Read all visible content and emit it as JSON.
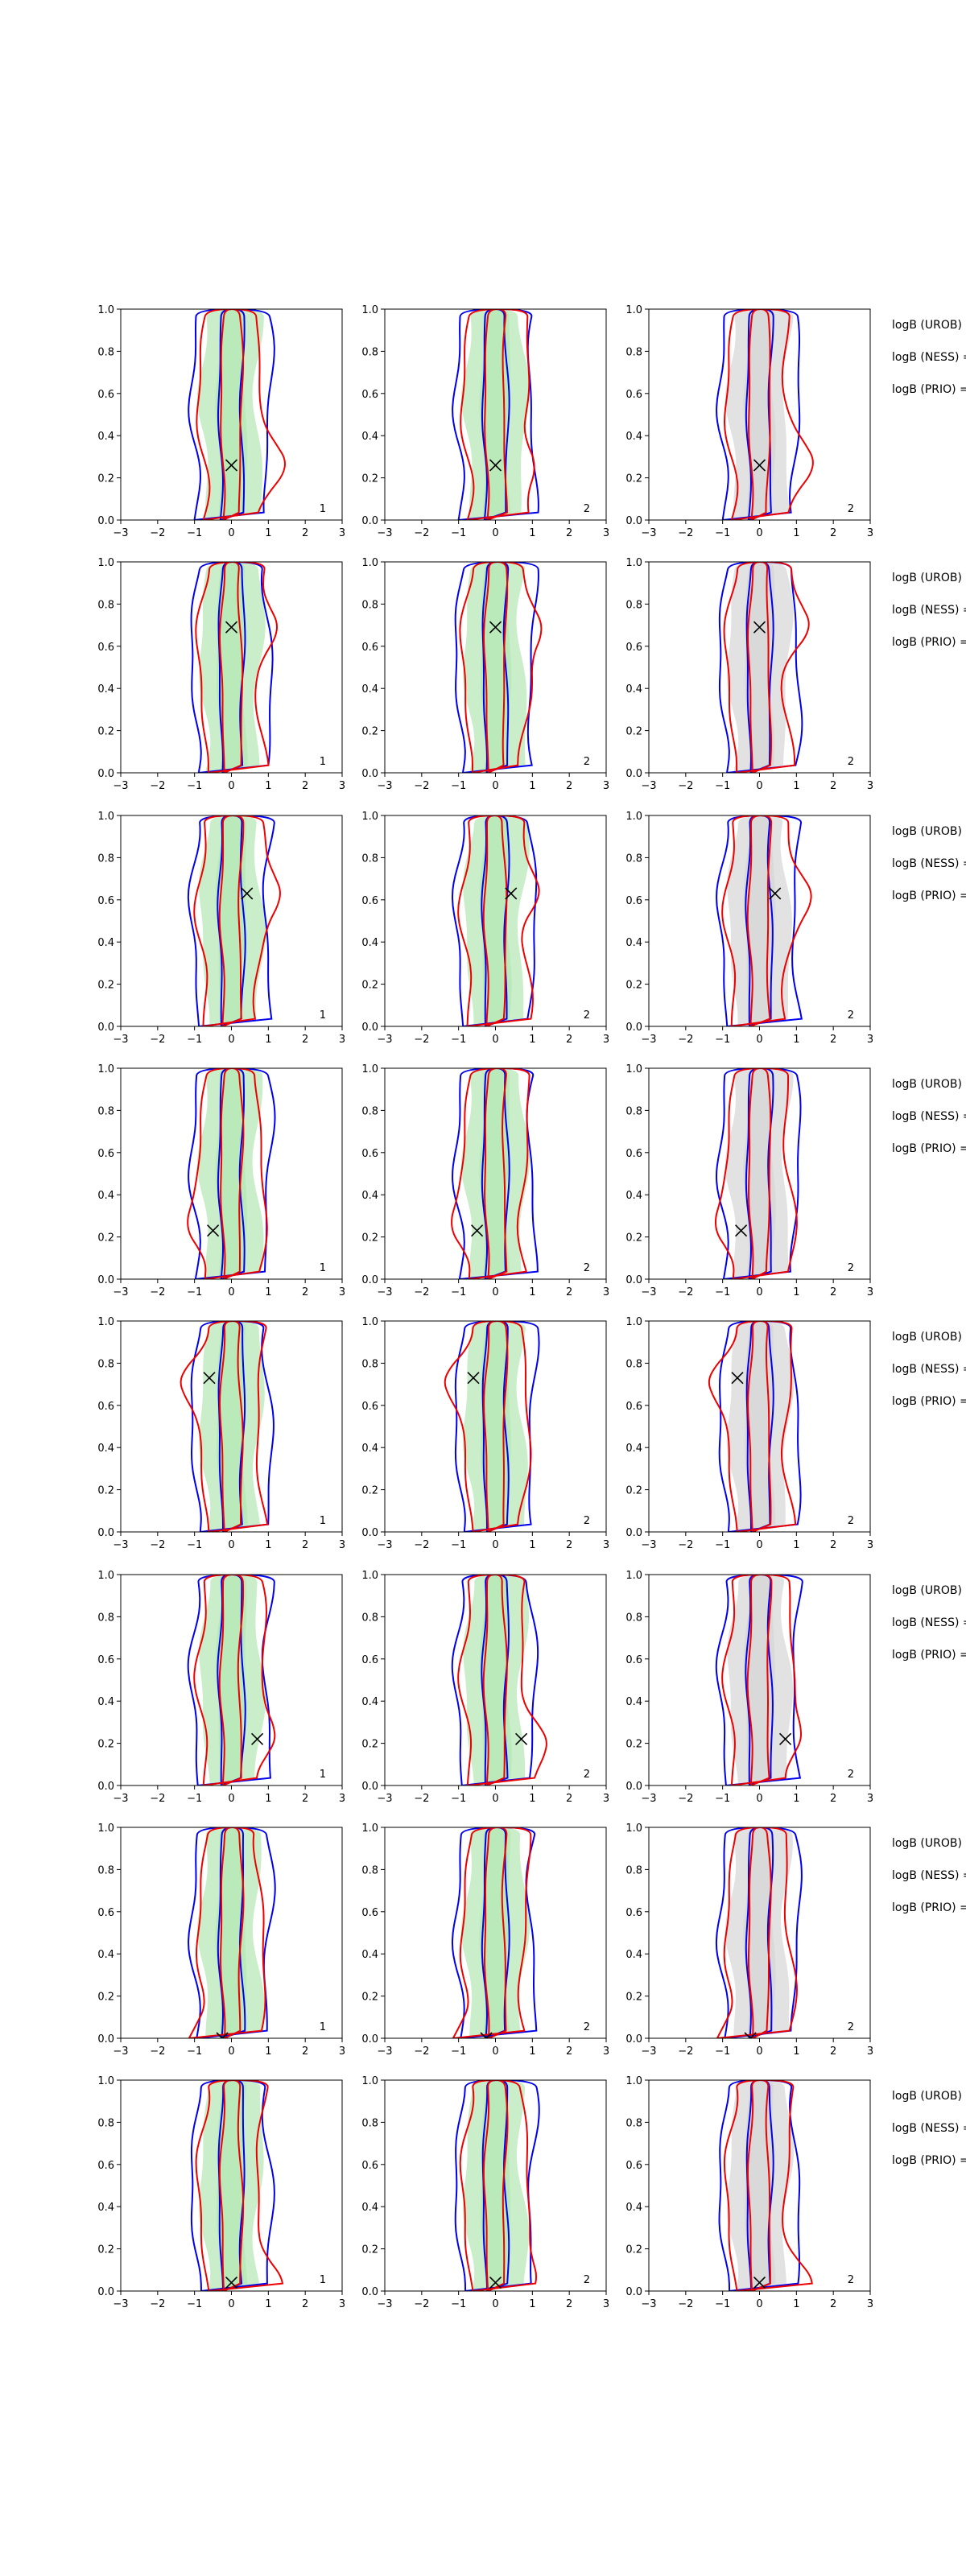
{
  "chart_data": {
    "type": "contour",
    "description_free": true,
    "xlim": [
      -3,
      3
    ],
    "ylim": [
      0,
      1
    ],
    "xticks": [
      "−3",
      "−2",
      "−1",
      "0",
      "1",
      "2",
      "3"
    ],
    "yticks": [
      "0.0",
      "0.2",
      "0.4",
      "0.6",
      "0.8",
      "1.0"
    ],
    "colors": {
      "blue_contour": "#0000ee",
      "red_contour": "#ee0000",
      "green_fill": "#b8e8b8",
      "grey_fill": "#d8d8d8",
      "marker": "#000000"
    },
    "side_labels": [
      "logB (UROB) =",
      "logB (NESS) =",
      "logB (PRIO) ="
    ],
    "column_corner_labels": [
      "1",
      "2",
      "2"
    ],
    "column_fills": [
      "green",
      "green",
      "grey"
    ],
    "markers": [
      {
        "x": 0.0,
        "y": 0.26
      },
      {
        "x": 0.0,
        "y": 0.69
      },
      {
        "x": 0.42,
        "y": 0.63
      },
      {
        "x": -0.5,
        "y": 0.23
      },
      {
        "x": -0.6,
        "y": 0.73
      },
      {
        "x": 0.7,
        "y": 0.22
      },
      {
        "x": -0.25,
        "y": 0.0
      },
      {
        "x": 0.0,
        "y": 0.04
      }
    ]
  }
}
